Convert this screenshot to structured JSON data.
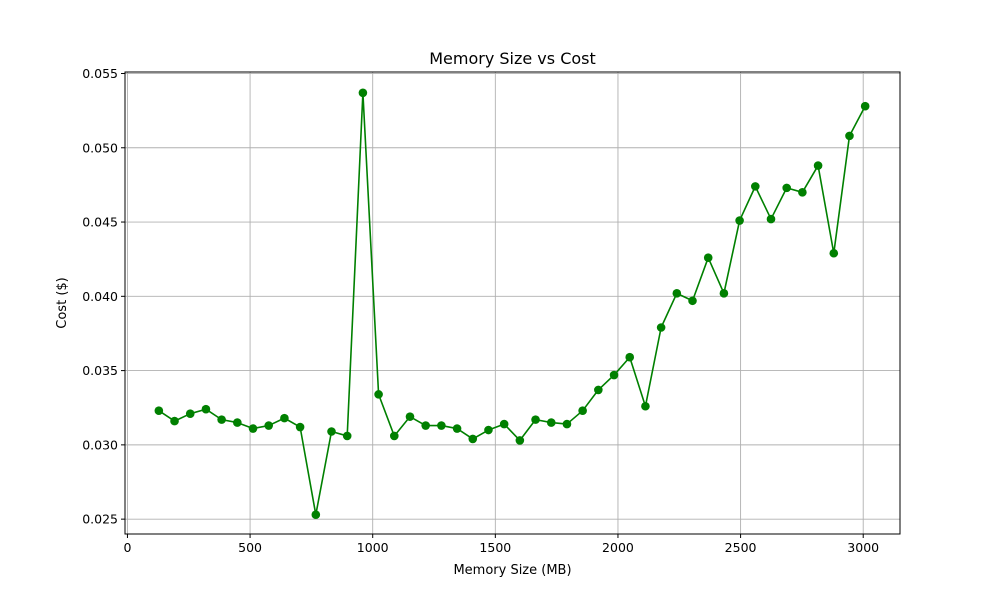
{
  "chart_data": {
    "type": "line",
    "title": "Memory Size vs Cost",
    "xlabel": "Memory Size (MB)",
    "ylabel": "Cost ($)",
    "xlim": [
      -10,
      3150
    ],
    "ylim": [
      0.024,
      0.0551
    ],
    "xticks": [
      0,
      500,
      1000,
      1500,
      2000,
      2500,
      3000
    ],
    "yticks": [
      0.025,
      0.03,
      0.035,
      0.04,
      0.045,
      0.05,
      0.055
    ],
    "xtick_labels": [
      "0",
      "500",
      "1000",
      "1500",
      "2000",
      "2500",
      "3000"
    ],
    "ytick_labels": [
      "0.025",
      "0.030",
      "0.035",
      "0.040",
      "0.045",
      "0.050",
      "0.055"
    ],
    "grid": true,
    "series": [
      {
        "color": "#008000",
        "marker": "circle",
        "x": [
          128,
          192,
          256,
          320,
          384,
          448,
          512,
          576,
          640,
          704,
          768,
          832,
          896,
          960,
          1024,
          1088,
          1152,
          1216,
          1280,
          1344,
          1408,
          1472,
          1536,
          1600,
          1664,
          1728,
          1792,
          1856,
          1920,
          1984,
          2048,
          2112,
          2176,
          2240,
          2304,
          2368,
          2432,
          2496,
          2560,
          2624,
          2688,
          2752,
          2816,
          2880,
          2944,
          3008
        ],
        "y": [
          0.0323,
          0.0316,
          0.0321,
          0.0324,
          0.0317,
          0.0315,
          0.0311,
          0.0313,
          0.0318,
          0.0312,
          0.0253,
          0.0309,
          0.0306,
          0.0537,
          0.0334,
          0.0306,
          0.0319,
          0.0313,
          0.0313,
          0.0311,
          0.0304,
          0.031,
          0.0314,
          0.0303,
          0.0317,
          0.0315,
          0.0314,
          0.0323,
          0.0337,
          0.0347,
          0.0359,
          0.0326,
          0.0379,
          0.0402,
          0.0397,
          0.0426,
          0.0402,
          0.0451,
          0.0474,
          0.0452,
          0.0473,
          0.047,
          0.0488,
          0.0429,
          0.0508,
          0.0528
        ]
      }
    ]
  }
}
